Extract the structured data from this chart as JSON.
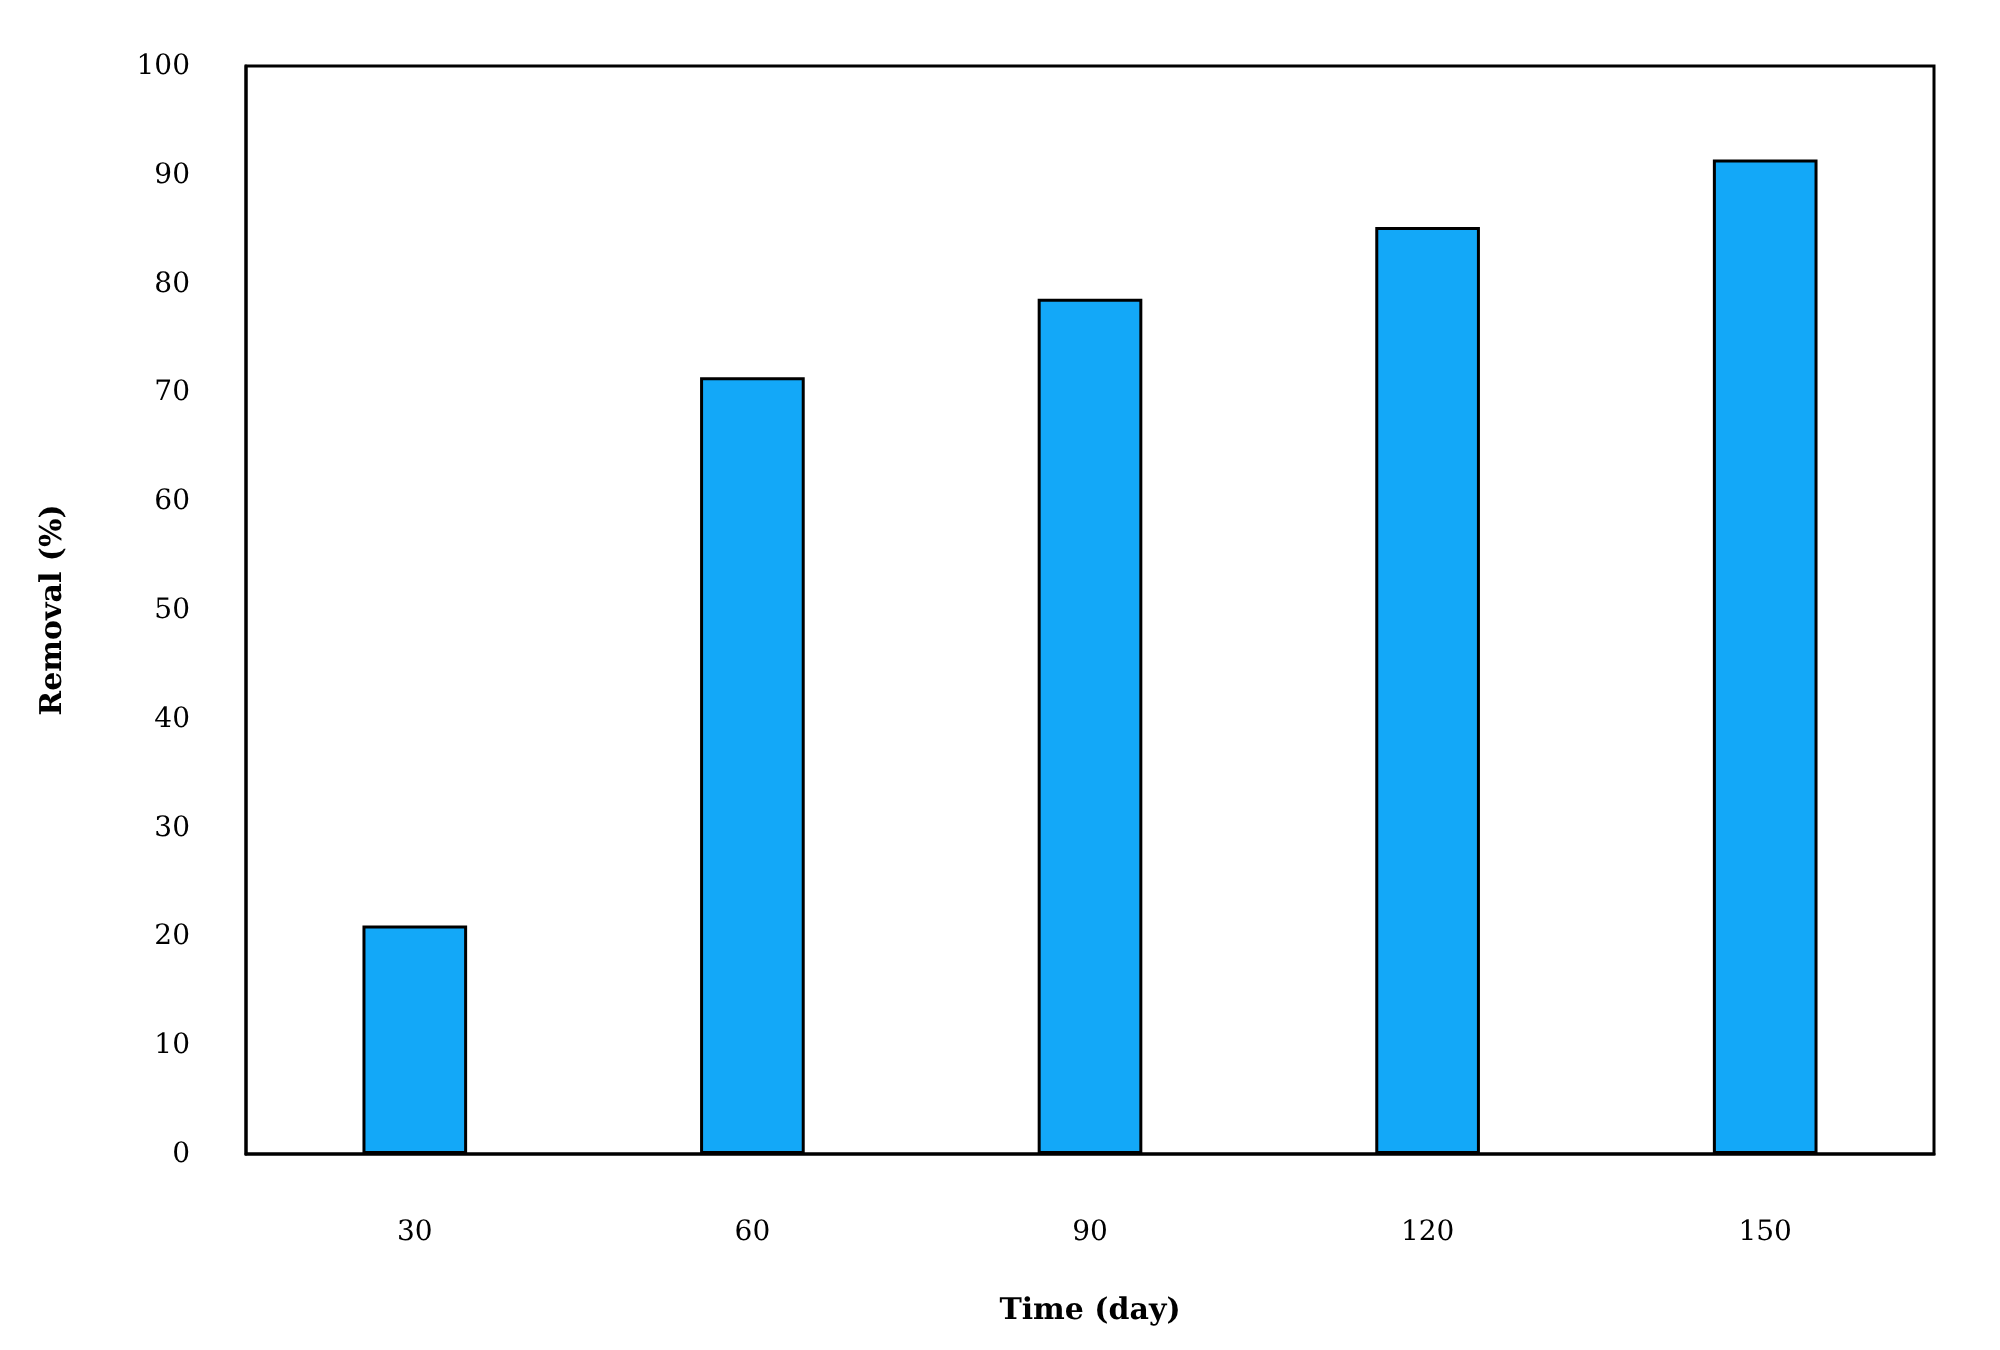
{
  "chart_data": {
    "type": "bar",
    "xlabel": "Time (day)",
    "ylabel": "Removal (%)",
    "categories": [
      "30",
      "60",
      "90",
      "120",
      "150"
    ],
    "values": [
      21,
      71.4,
      78.6,
      85.2,
      91.4
    ],
    "color": "#13a8f8",
    "ylim": [
      0,
      100
    ],
    "yticks": [
      0,
      10,
      20,
      30,
      40,
      50,
      60,
      70,
      80,
      90,
      100
    ],
    "grid": false
  }
}
